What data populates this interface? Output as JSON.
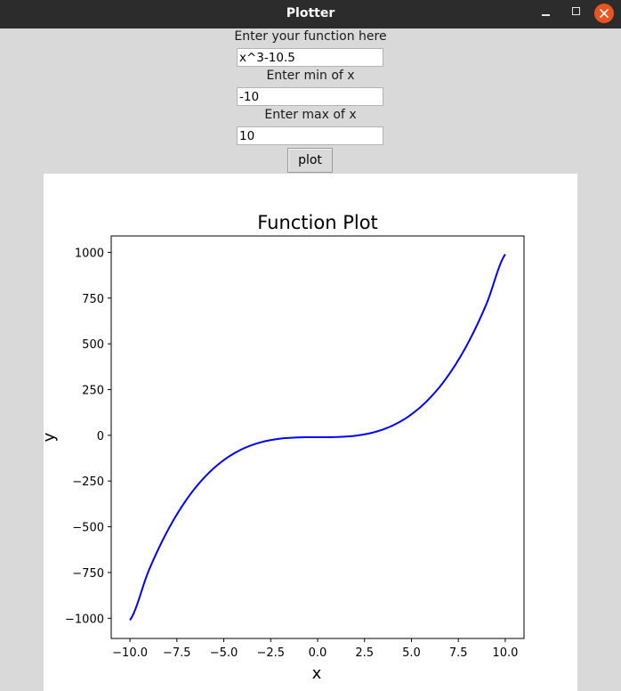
{
  "window": {
    "title": "Plotter"
  },
  "form": {
    "function_label": "Enter your function here",
    "function_value": "x^3-10.5",
    "min_label": "Enter min of x",
    "min_value": "-10",
    "max_label": "Enter max of x",
    "max_value": "10",
    "plot_button": "plot"
  },
  "colors": {
    "line": "#0000ff",
    "close_button": "#e95420",
    "titlebar": "#2c2c2c"
  },
  "chart_data": {
    "type": "line",
    "title": "Function Plot",
    "xlabel": "x",
    "ylabel": "y",
    "function": "x^3-10.5",
    "x_range": [
      -10,
      10
    ],
    "y_range": [
      -1010.5,
      989.5
    ],
    "xticks": [
      -10.0,
      -7.5,
      -5.0,
      -2.5,
      0.0,
      2.5,
      5.0,
      7.5,
      10.0
    ],
    "xtick_labels": [
      "−10.0",
      "−7.5",
      "−5.0",
      "−2.5",
      "0.0",
      "2.5",
      "5.0",
      "7.5",
      "10.0"
    ],
    "yticks": [
      -1000,
      -750,
      -500,
      -250,
      0,
      250,
      500,
      750,
      1000
    ],
    "ytick_labels": [
      "−1000",
      "−750",
      "−500",
      "−250",
      "0",
      "250",
      "500",
      "750",
      "1000"
    ],
    "grid": false,
    "legend": "none",
    "series": [
      {
        "color": "#0000ff",
        "x": [
          -10,
          -9,
          -8,
          -7,
          -6,
          -5,
          -4,
          -3,
          -2,
          -1,
          0,
          1,
          2,
          3,
          4,
          5,
          6,
          7,
          8,
          9,
          10
        ],
        "y": [
          -1010.5,
          -739.5,
          -522.5,
          -353.5,
          -226.5,
          -135.5,
          -74.5,
          -37.5,
          -18.5,
          -11.5,
          -10.5,
          -9.5,
          -2.5,
          16.5,
          53.5,
          114.5,
          205.5,
          332.5,
          501.5,
          718.5,
          989.5
        ]
      }
    ]
  }
}
